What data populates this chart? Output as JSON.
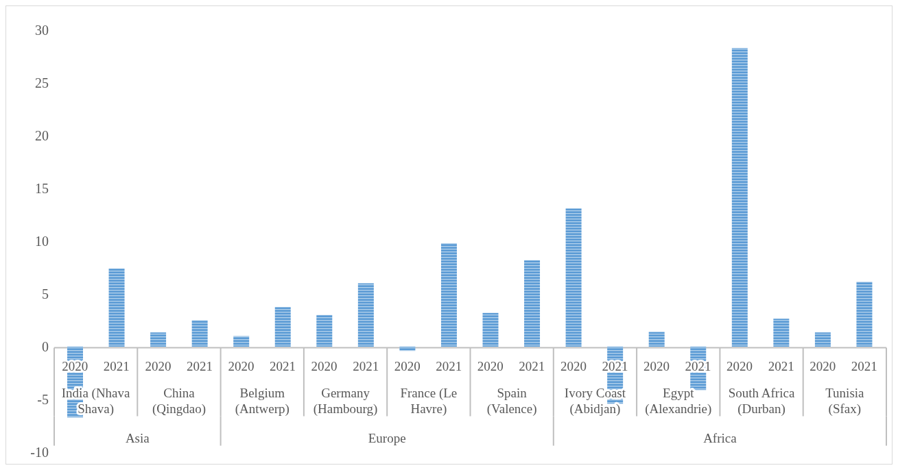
{
  "chart_data": {
    "type": "bar",
    "categories": [
      "2020",
      "2021",
      "2020",
      "2021",
      "2020",
      "2021",
      "2020",
      "2021",
      "2020",
      "2021",
      "2020",
      "2021",
      "2020",
      "2021",
      "2020",
      "2021",
      "2020",
      "2021",
      "2020",
      "2021"
    ],
    "values": [
      -6.7,
      7.4,
      1.35,
      2.5,
      1.0,
      3.75,
      3.0,
      6.0,
      -0.4,
      9.8,
      3.2,
      8.2,
      13.1,
      -5.4,
      1.4,
      -4.1,
      28.3,
      2.65,
      1.35,
      6.15
    ],
    "color": "#5b9bd5",
    "ylim": [
      -10,
      30
    ],
    "yticks": [
      -10,
      -5,
      0,
      5,
      10,
      15,
      20,
      25,
      30
    ],
    "grid": false,
    "annotations": [
      "India (Nhava Shava)",
      "China (Qingdao)",
      "Belgium (Antwerp)",
      "Germany (Hambourg)",
      "France (Le Havre)",
      "Spain (Valence)",
      "Ivory Coast (Abidjan)",
      "Egypt (Alexandrie)",
      "South Africa (Durban)",
      "Tunisia (Sfax)",
      "Asia",
      "Europe",
      "Africa"
    ]
  }
}
